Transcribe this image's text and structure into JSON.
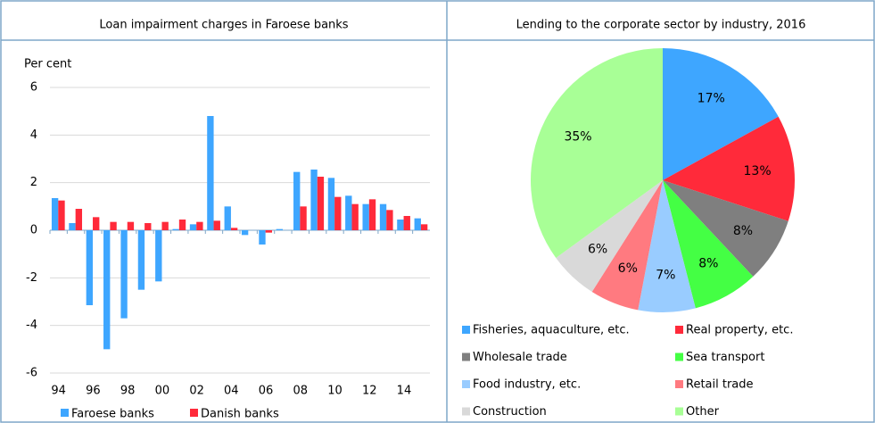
{
  "chart_data": [
    {
      "type": "bar",
      "title": "Loan impairment charges in Faroese banks",
      "y_label": "Per cent",
      "categories": [
        "94",
        null,
        "96",
        null,
        "98",
        null,
        "00",
        null,
        "02",
        null,
        "04",
        null,
        "06",
        null,
        "08",
        null,
        "10",
        null,
        "12",
        null,
        "14",
        null
      ],
      "series": [
        {
          "name": "Faroese banks",
          "color": "#3ea6ff",
          "values": [
            1.35,
            0.3,
            -3.15,
            -5.0,
            -3.7,
            -2.5,
            -2.15,
            0.05,
            0.25,
            4.8,
            1.0,
            -0.2,
            -0.6,
            0.05,
            2.45,
            2.55,
            2.2,
            1.45,
            1.1,
            1.1,
            0.45,
            0.5
          ]
        },
        {
          "name": "Danish banks",
          "color": "#ff2a3a",
          "values": [
            1.25,
            0.9,
            0.55,
            0.35,
            0.35,
            0.3,
            0.35,
            0.45,
            0.35,
            0.4,
            0.1,
            0.0,
            -0.1,
            0.0,
            1.0,
            2.25,
            1.4,
            1.1,
            1.3,
            0.85,
            0.6,
            0.25
          ]
        }
      ],
      "ylim": [
        -6,
        6
      ],
      "yticks": [
        -6,
        -4,
        -2,
        0,
        2,
        4,
        6
      ]
    },
    {
      "type": "pie",
      "title": "Lending to the corporate sector by industry, 2016",
      "categories": [
        "Fisheries, aquaculture, etc.",
        "Real property, etc.",
        "Wholesale trade",
        "Sea transport",
        "Food industry, etc.",
        "Retail trade",
        "Construction",
        "Other"
      ],
      "values": [
        17,
        13,
        8,
        8,
        7,
        6,
        6,
        35
      ],
      "value_labels": [
        "17%",
        "13%",
        "8%",
        "8%",
        "7%",
        "6%",
        "6%",
        "35%"
      ],
      "colors": [
        "#3ea6ff",
        "#ff2a3a",
        "#7f7f7f",
        "#44ff44",
        "#99ccff",
        "#ff7a80",
        "#d9d9d9",
        "#a8ff96"
      ]
    }
  ]
}
